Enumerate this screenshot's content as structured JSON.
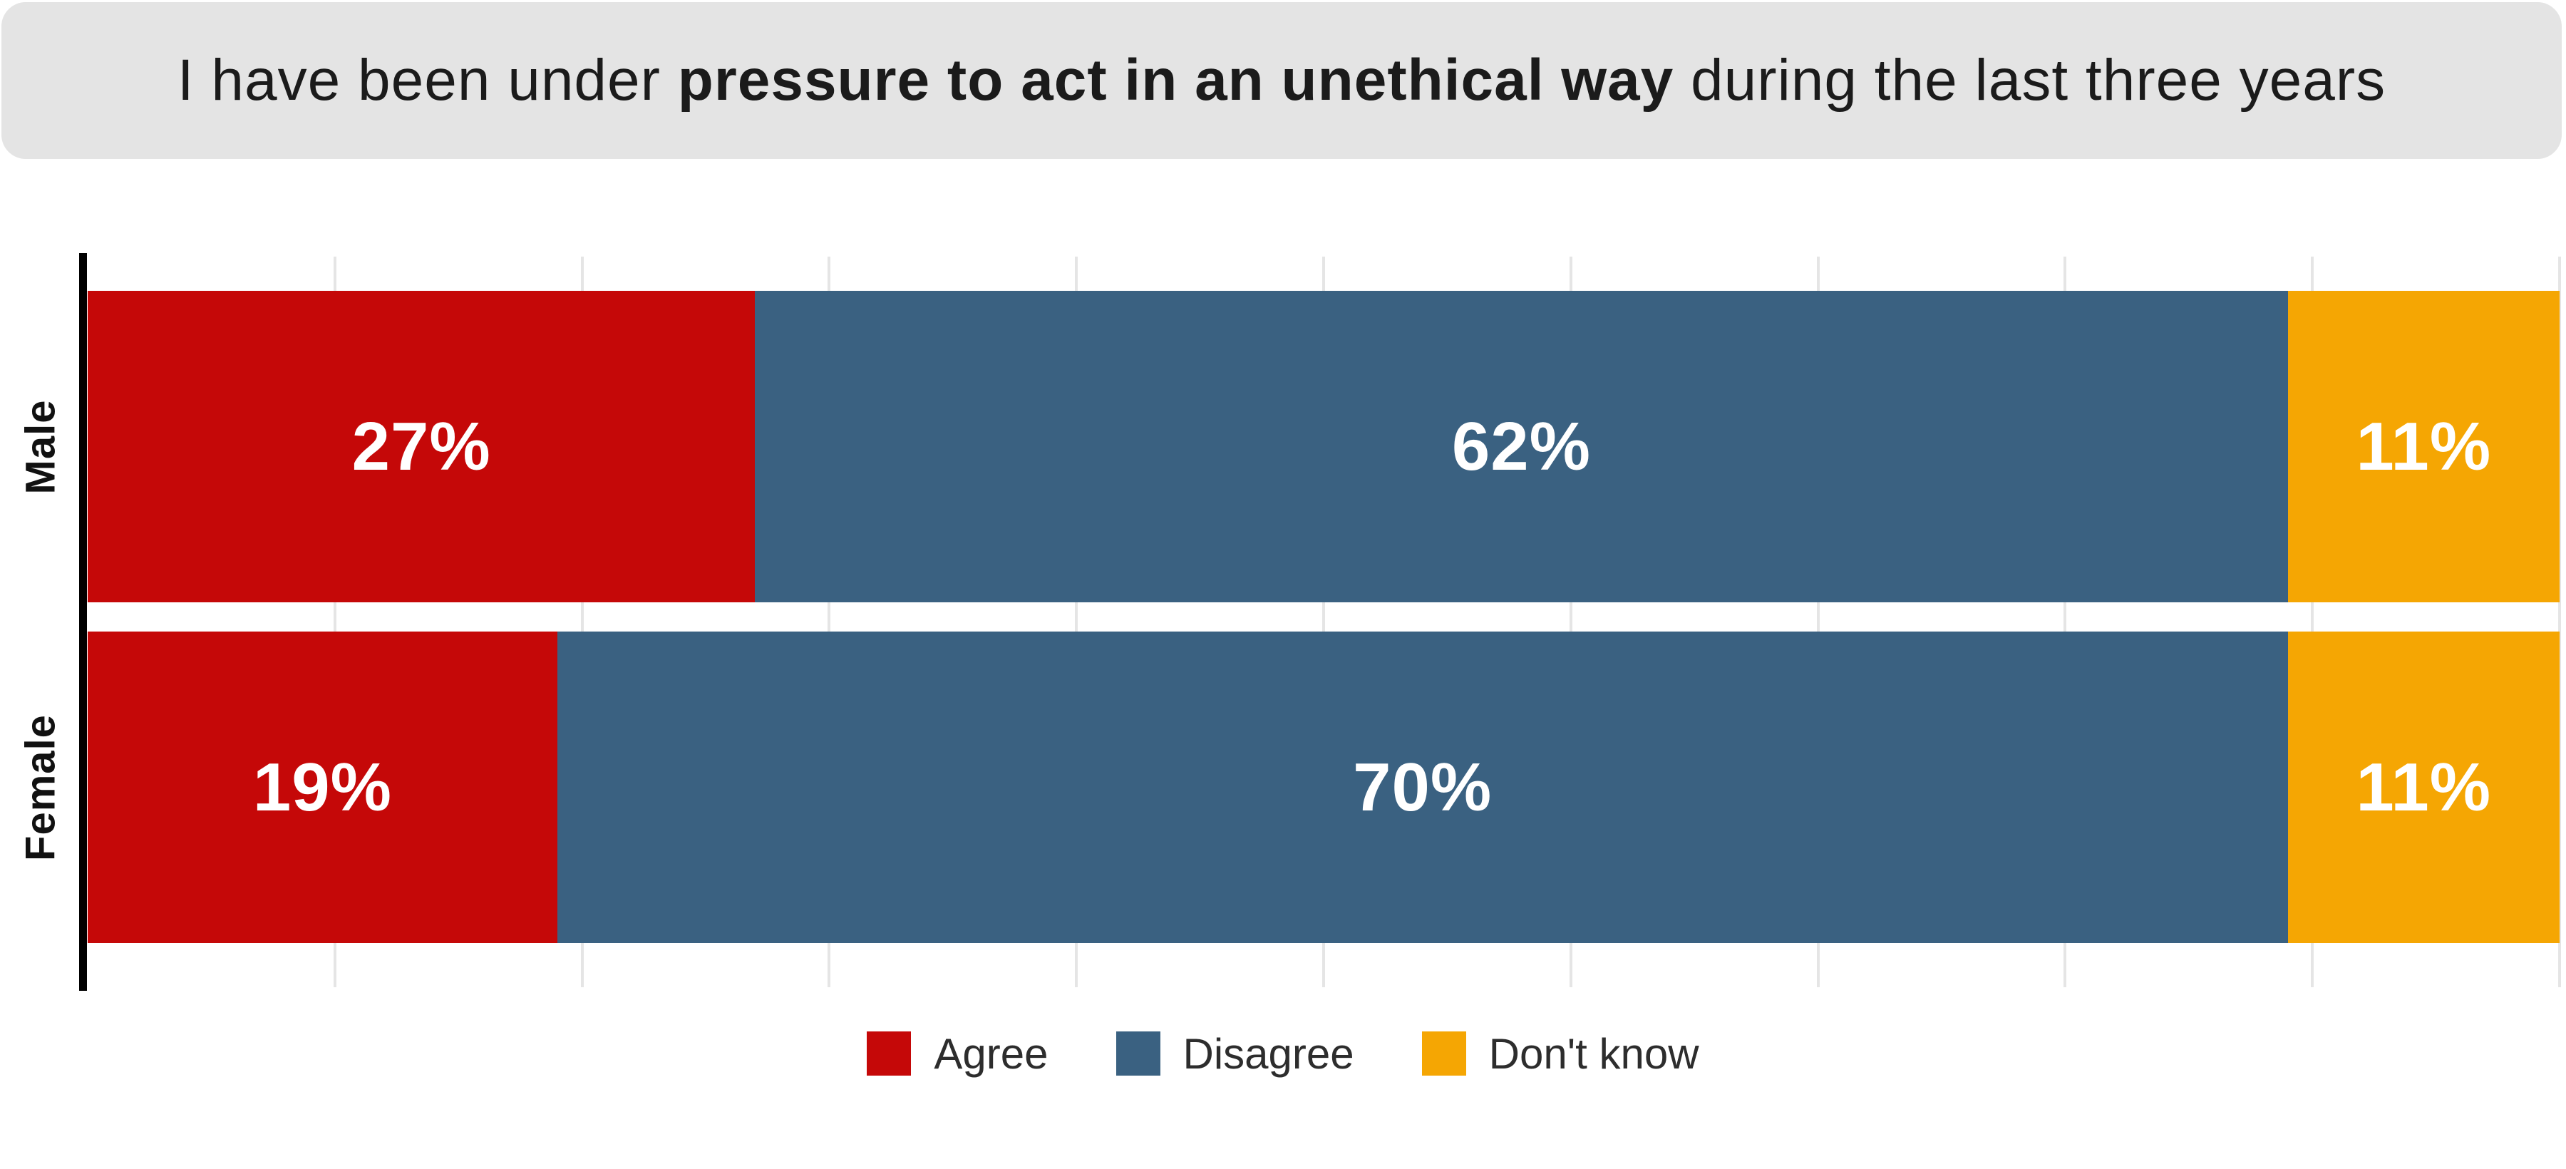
{
  "title": {
    "prefix": "I have been under ",
    "bold": "pressure to act in an unethical way",
    "suffix": " during the last three years"
  },
  "colors": {
    "agree": "#C50808",
    "disagree": "#3A6181",
    "dont_know": "#F5A603",
    "title_bg": "#E4E4E4",
    "grid": "#E5E5E5",
    "axis_spine": "#000000",
    "bar_label_text": "#FFFFFF"
  },
  "legend": [
    {
      "label": "Agree",
      "color": "#C50808"
    },
    {
      "label": "Disagree",
      "color": "#3A6181"
    },
    {
      "label": "Don't know",
      "color": "#F5A603"
    }
  ],
  "chart_data": {
    "type": "bar",
    "orientation": "horizontal",
    "stacked": true,
    "title": "I have been under pressure to act in an unethical way during the last three years",
    "categories": [
      "Male",
      "Female"
    ],
    "series": [
      {
        "name": "Agree",
        "color": "#C50808",
        "values": [
          27,
          19
        ]
      },
      {
        "name": "Disagree",
        "color": "#3A6181",
        "values": [
          62,
          70
        ]
      },
      {
        "name": "Don't know",
        "color": "#F5A603",
        "values": [
          11,
          11
        ]
      }
    ],
    "bar_labels": [
      [
        "27%",
        "62%",
        "11%"
      ],
      [
        "19%",
        "70%",
        "11%"
      ]
    ],
    "value_suffix": "%",
    "xlabel": "",
    "ylabel": "",
    "xlim": [
      0,
      100
    ],
    "grid": {
      "axis": "x",
      "interval_percent": 10,
      "color": "#E5E5E5"
    },
    "legend_position": "bottom"
  }
}
